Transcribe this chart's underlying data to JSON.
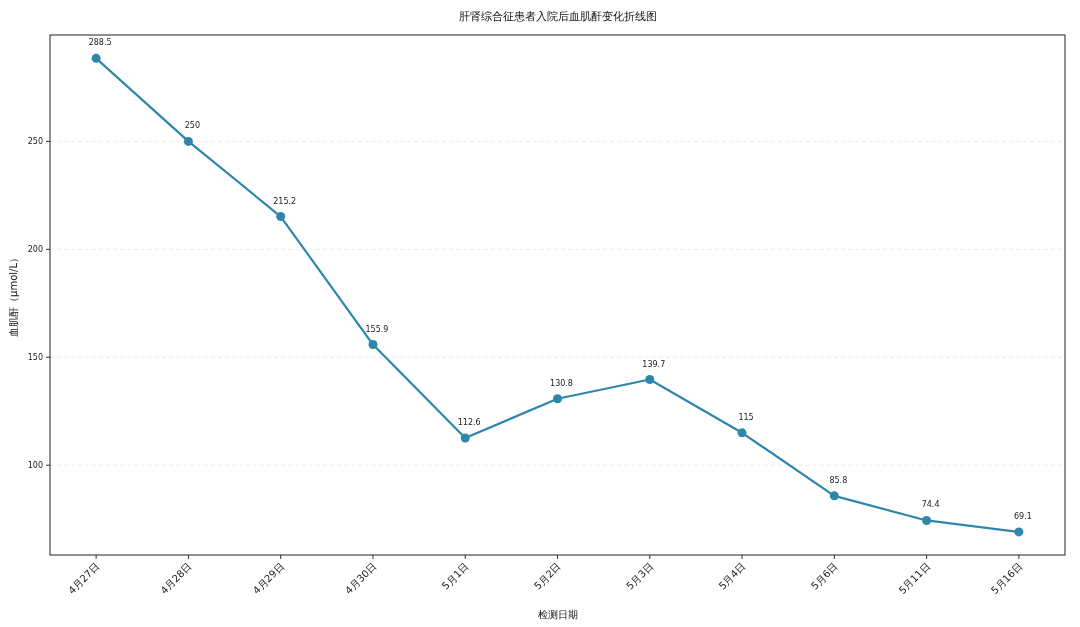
{
  "chart_data": {
    "type": "line",
    "title": "肝肾综合征患者入院后血肌酐变化折线图",
    "xlabel": "检测日期",
    "ylabel": "血肌酐（μmol/L）",
    "categories": [
      "4月27日",
      "4月28日",
      "4月29日",
      "4月30日",
      "5月1日",
      "5月2日",
      "5月3日",
      "5月4日",
      "5月6日",
      "5月11日",
      "5月16日"
    ],
    "series": [
      {
        "color": "#2e86ab",
        "values": [
          288.5,
          250,
          215.2,
          155.9,
          112.6,
          130.8,
          139.7,
          115,
          85.8,
          74.4,
          69.1
        ]
      }
    ],
    "ylim": [
      58.4,
      299.3
    ],
    "yticks": [
      100,
      150,
      200,
      250
    ],
    "grid": "y",
    "marker": "circle",
    "line_style": "solid",
    "data_labels": true
  }
}
